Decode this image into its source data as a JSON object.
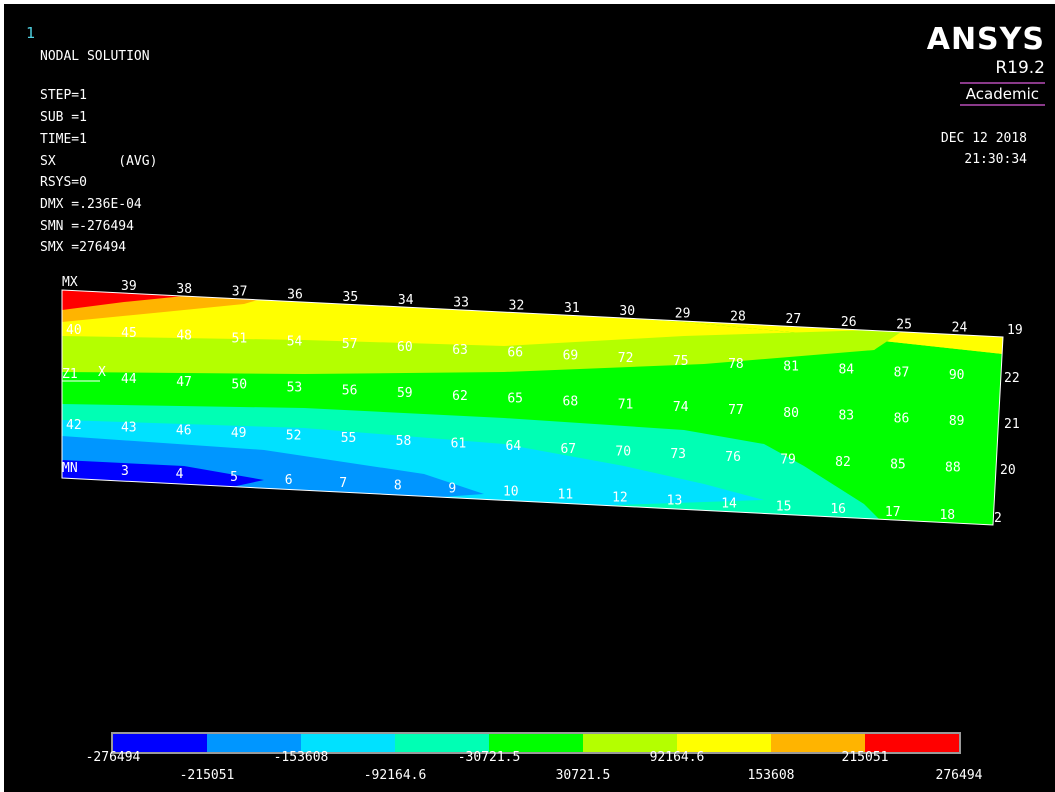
{
  "window": {
    "view_number": "1"
  },
  "info": {
    "lines": [
      "NODAL SOLUTION",
      "",
      "STEP=1",
      "SUB =1",
      "TIME=1",
      "SX        (AVG)",
      "RSYS=0",
      "DMX =.236E-04",
      "SMN =-276494",
      "SMX =276494"
    ]
  },
  "logo": {
    "title": "ANSYS",
    "version": "R19.2",
    "edition": "Academic"
  },
  "datetime": {
    "date": "DEC 12 2018",
    "time": "21:30:34"
  },
  "triad": {
    "label": "X",
    "node_label": "Z1"
  },
  "markers": {
    "max": "MX",
    "min": "MN"
  },
  "nodes": {
    "row0": [
      "39",
      "38",
      "37",
      "36",
      "35",
      "34",
      "33",
      "32",
      "31",
      "30",
      "29",
      "28",
      "27",
      "26",
      "25",
      "24",
      "19"
    ],
    "row1": [
      "40",
      "45",
      "48",
      "51",
      "54",
      "57",
      "60",
      "63",
      "66",
      "69",
      "72",
      "75",
      "78",
      "81",
      "84",
      "87",
      "90",
      "22"
    ],
    "row2": [
      "44",
      "47",
      "50",
      "53",
      "56",
      "59",
      "62",
      "65",
      "68",
      "71",
      "74",
      "77",
      "80",
      "83",
      "86",
      "89",
      "21"
    ],
    "row3": [
      "42",
      "43",
      "46",
      "49",
      "52",
      "55",
      "58",
      "61",
      "64",
      "67",
      "70",
      "73",
      "76",
      "79",
      "82",
      "85",
      "88",
      "20"
    ],
    "row4": [
      "3",
      "4",
      "5",
      "6",
      "7",
      "8",
      "9",
      "10",
      "11",
      "12",
      "13",
      "14",
      "15",
      "16",
      "17",
      "18",
      "2"
    ]
  },
  "legend": {
    "colors": [
      "#0000ff",
      "#0096ff",
      "#00e1ff",
      "#00ffb4",
      "#00ff00",
      "#b4ff00",
      "#ffff00",
      "#ffb400",
      "#ff0000"
    ],
    "ticks_top": [
      "-276494",
      "-153608",
      "-30721.5",
      "92164.6",
      "215051"
    ],
    "ticks_bottom": [
      "-215051",
      "-92164.6",
      "30721.5",
      "153608",
      "276494"
    ]
  }
}
